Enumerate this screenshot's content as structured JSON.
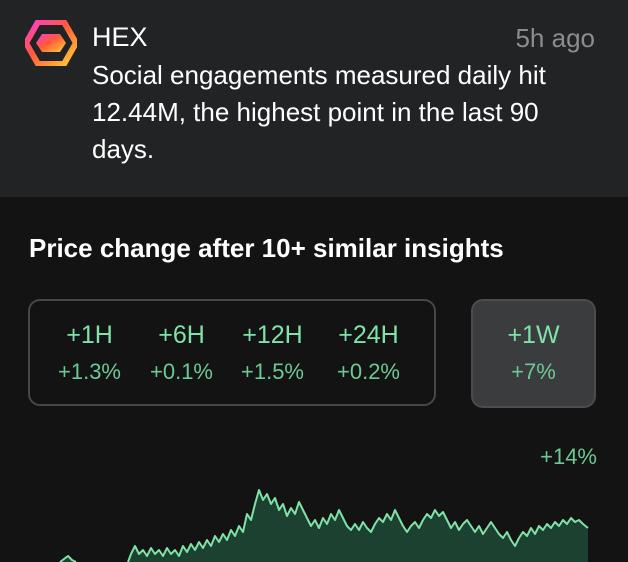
{
  "insight": {
    "asset_name": "HEX",
    "time_ago": "5h ago",
    "message": "Social engagements measured daily hit 12.44M, the highest point in the last 90 days."
  },
  "price_change": {
    "title": "Price change after 10+ similar insights",
    "intervals": [
      {
        "label": "+1H",
        "value": "+1.3%"
      },
      {
        "label": "+6H",
        "value": "+0.1%"
      },
      {
        "label": "+12H",
        "value": "+1.5%"
      },
      {
        "label": "+24H",
        "value": "+0.2%"
      }
    ],
    "selected": {
      "label": "+1W",
      "value": "+7%"
    }
  },
  "chart": {
    "max_label": "+14%",
    "colors": {
      "line": "#7fe2a8",
      "fill": "#1f4a36"
    }
  }
}
